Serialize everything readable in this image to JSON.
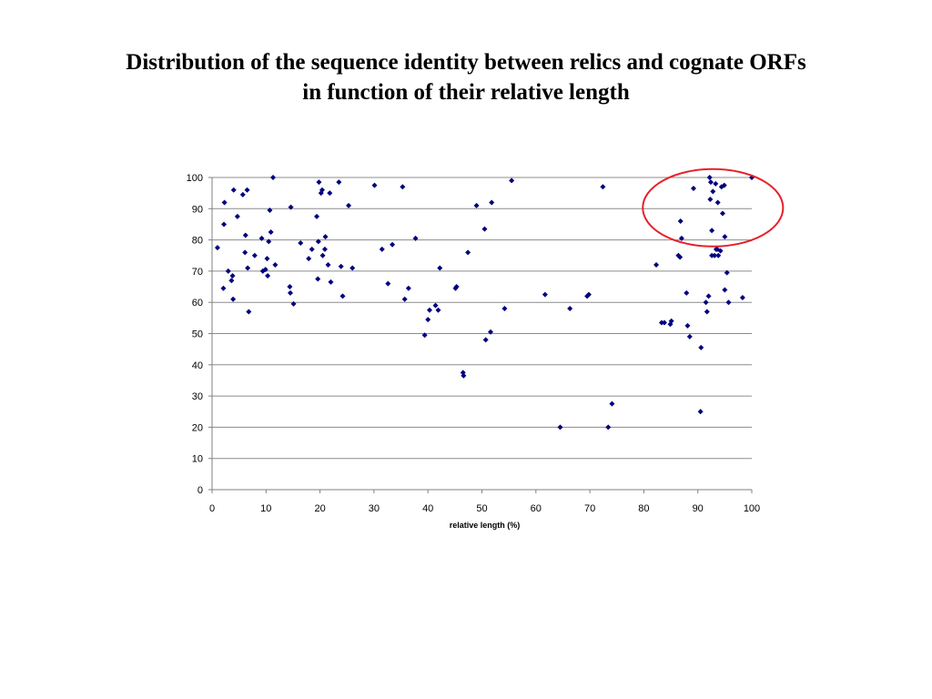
{
  "chart_data": {
    "type": "scatter",
    "title_lines": [
      "Distribution of the sequence identity between relics and cognate ORFs",
      "in function of their relative length"
    ],
    "xlabel": "relative length (%)",
    "ylabel": "",
    "xlim": [
      0,
      100
    ],
    "ylim": [
      0,
      100
    ],
    "xticks": [
      0,
      10,
      20,
      30,
      40,
      50,
      60,
      70,
      80,
      90,
      100
    ],
    "yticks": [
      0,
      10,
      20,
      30,
      40,
      50,
      60,
      70,
      80,
      90,
      100
    ],
    "grid": "horizontal",
    "marker_color": "#00007F",
    "highlight_color": "#E8202A",
    "highlight_ellipse": {
      "cx": 92.8,
      "cy": 90.3,
      "rx": 13.0,
      "ry": 12.4
    },
    "series": [
      {
        "points": [
          [
            1.0,
            77.5
          ],
          [
            2.1,
            64.5
          ],
          [
            2.2,
            85.0
          ],
          [
            2.3,
            92.0
          ],
          [
            3.0,
            70.0
          ],
          [
            3.6,
            67.0
          ],
          [
            3.8,
            68.5
          ],
          [
            3.9,
            61.0
          ],
          [
            4.0,
            96.0
          ],
          [
            4.7,
            87.5
          ],
          [
            5.7,
            94.5
          ],
          [
            6.1,
            76.0
          ],
          [
            6.2,
            81.5
          ],
          [
            6.5,
            96.0
          ],
          [
            6.6,
            71.0
          ],
          [
            6.8,
            57.0
          ],
          [
            7.9,
            75.0
          ],
          [
            9.2,
            80.5
          ],
          [
            9.4,
            70.0
          ],
          [
            9.9,
            70.5
          ],
          [
            10.2,
            74.0
          ],
          [
            10.3,
            68.5
          ],
          [
            10.5,
            79.5
          ],
          [
            10.7,
            89.5
          ],
          [
            10.9,
            82.5
          ],
          [
            11.3,
            100.0
          ],
          [
            11.7,
            72.0
          ],
          [
            14.4,
            65.0
          ],
          [
            14.5,
            63.0
          ],
          [
            14.6,
            90.5
          ],
          [
            15.1,
            59.5
          ],
          [
            16.4,
            79.0
          ],
          [
            17.9,
            74.0
          ],
          [
            18.5,
            77.0
          ],
          [
            19.4,
            87.5
          ],
          [
            19.6,
            67.5
          ],
          [
            19.7,
            79.5
          ],
          [
            19.8,
            98.5
          ],
          [
            20.2,
            95.0
          ],
          [
            20.4,
            96.0
          ],
          [
            20.5,
            75.0
          ],
          [
            20.9,
            77.0
          ],
          [
            21.0,
            81.0
          ],
          [
            21.5,
            72.0
          ],
          [
            21.8,
            95.0
          ],
          [
            22.0,
            66.5
          ],
          [
            23.5,
            98.5
          ],
          [
            23.9,
            71.5
          ],
          [
            24.2,
            62.0
          ],
          [
            25.3,
            91.0
          ],
          [
            26.0,
            71.0
          ],
          [
            30.1,
            97.5
          ],
          [
            31.5,
            77.0
          ],
          [
            32.6,
            66.0
          ],
          [
            33.4,
            78.5
          ],
          [
            35.3,
            97.0
          ],
          [
            35.7,
            61.0
          ],
          [
            36.4,
            64.5
          ],
          [
            37.7,
            80.5
          ],
          [
            39.4,
            49.5
          ],
          [
            40.0,
            54.5
          ],
          [
            40.3,
            57.5
          ],
          [
            41.4,
            59.0
          ],
          [
            41.9,
            57.5
          ],
          [
            42.2,
            71.0
          ],
          [
            45.1,
            64.5
          ],
          [
            45.3,
            65.0
          ],
          [
            46.5,
            37.5
          ],
          [
            46.6,
            36.5
          ],
          [
            47.4,
            76.0
          ],
          [
            49.0,
            91.0
          ],
          [
            50.5,
            83.5
          ],
          [
            50.7,
            48.0
          ],
          [
            51.6,
            50.5
          ],
          [
            51.8,
            92.0
          ],
          [
            54.2,
            58.0
          ],
          [
            55.5,
            99.0
          ],
          [
            61.7,
            62.5
          ],
          [
            64.5,
            20.0
          ],
          [
            66.3,
            58.0
          ],
          [
            69.5,
            62.0
          ],
          [
            69.8,
            62.5
          ],
          [
            72.4,
            97.0
          ],
          [
            73.4,
            20.0
          ],
          [
            74.1,
            27.5
          ],
          [
            82.3,
            72.0
          ],
          [
            83.3,
            53.5
          ],
          [
            83.8,
            53.5
          ],
          [
            84.9,
            53.0
          ],
          [
            85.1,
            54.0
          ],
          [
            86.4,
            75.0
          ],
          [
            86.7,
            74.5
          ],
          [
            86.8,
            86.0
          ],
          [
            87.0,
            80.5
          ],
          [
            87.9,
            63.0
          ],
          [
            88.1,
            52.5
          ],
          [
            88.5,
            49.0
          ],
          [
            89.2,
            96.5
          ],
          [
            90.5,
            25.0
          ],
          [
            90.6,
            45.5
          ],
          [
            91.5,
            60.0
          ],
          [
            91.7,
            57.0
          ],
          [
            92.0,
            62.0
          ],
          [
            92.2,
            100.0
          ],
          [
            92.3,
            93.0
          ],
          [
            92.4,
            98.5
          ],
          [
            92.6,
            83.0
          ],
          [
            92.6,
            75.0
          ],
          [
            92.8,
            95.5
          ],
          [
            93.1,
            75.0
          ],
          [
            93.3,
            98.0
          ],
          [
            93.4,
            77.0
          ],
          [
            93.6,
            77.0
          ],
          [
            93.7,
            92.0
          ],
          [
            93.8,
            75.0
          ],
          [
            94.2,
            76.5
          ],
          [
            94.4,
            97.0
          ],
          [
            94.6,
            88.5
          ],
          [
            94.9,
            97.5
          ],
          [
            95.0,
            81.0
          ],
          [
            95.0,
            64.0
          ],
          [
            95.4,
            69.5
          ],
          [
            95.7,
            60.0
          ],
          [
            98.3,
            61.5
          ],
          [
            100.0,
            100.0
          ]
        ]
      }
    ]
  }
}
